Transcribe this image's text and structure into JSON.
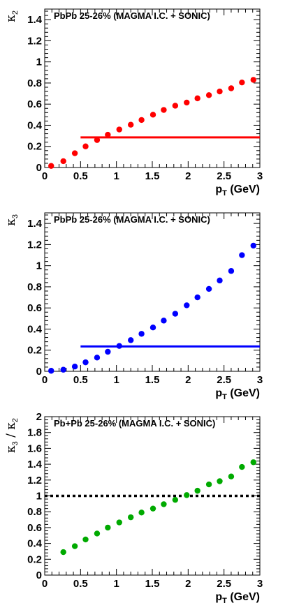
{
  "chart_data": [
    {
      "type": "scatter",
      "title": "PbPb 25-26% (MAGMA I.C. + SONIC)",
      "xlabel": {
        "main": "p",
        "sub": "T",
        "unit": "(GeV)"
      },
      "ylabel": {
        "greek": "κ",
        "sub": "2"
      },
      "xlim": [
        0,
        3
      ],
      "ylim": [
        0,
        1.5
      ],
      "x_ticks": [
        "0",
        "0.5",
        "1",
        "1.5",
        "2",
        "2.5",
        "3"
      ],
      "y_ticks": [
        "0",
        "0.2",
        "0.4",
        "0.6",
        "0.8",
        "1",
        "1.2",
        "1.4"
      ],
      "marker_color": "#ff0000",
      "points": [
        [
          0.09,
          0.015
        ],
        [
          0.26,
          0.06
        ],
        [
          0.42,
          0.135
        ],
        [
          0.57,
          0.2
        ],
        [
          0.73,
          0.26
        ],
        [
          0.88,
          0.31
        ],
        [
          1.04,
          0.36
        ],
        [
          1.2,
          0.405
        ],
        [
          1.35,
          0.45
        ],
        [
          1.51,
          0.5
        ],
        [
          1.66,
          0.545
        ],
        [
          1.82,
          0.585
        ],
        [
          1.98,
          0.615
        ],
        [
          2.13,
          0.655
        ],
        [
          2.29,
          0.685
        ],
        [
          2.44,
          0.72
        ],
        [
          2.6,
          0.75
        ],
        [
          2.75,
          0.805
        ],
        [
          2.91,
          0.83
        ]
      ],
      "hline": {
        "y": 0.285,
        "xmin": 0.5,
        "xmax": 3,
        "color": "#ff0000",
        "style": "solid"
      }
    },
    {
      "type": "scatter",
      "title": "PbPb 25-26% (MAGMA I.C. + SONIC)",
      "xlabel": {
        "main": "p",
        "sub": "T",
        "unit": "(GeV)"
      },
      "ylabel": {
        "greek": "κ",
        "sub": "3"
      },
      "xlim": [
        0,
        3
      ],
      "ylim": [
        0,
        1.5
      ],
      "x_ticks": [
        "0",
        "0.5",
        "1",
        "1.5",
        "2",
        "2.5",
        "3"
      ],
      "y_ticks": [
        "0",
        "0.2",
        "0.4",
        "0.6",
        "0.8",
        "1",
        "1.2",
        "1.4"
      ],
      "marker_color": "#0000ff",
      "points": [
        [
          0.09,
          0.005
        ],
        [
          0.26,
          0.015
        ],
        [
          0.42,
          0.045
        ],
        [
          0.57,
          0.085
        ],
        [
          0.73,
          0.13
        ],
        [
          0.88,
          0.185
        ],
        [
          1.04,
          0.24
        ],
        [
          1.2,
          0.295
        ],
        [
          1.35,
          0.355
        ],
        [
          1.51,
          0.415
        ],
        [
          1.66,
          0.48
        ],
        [
          1.82,
          0.545
        ],
        [
          1.98,
          0.625
        ],
        [
          2.13,
          0.7
        ],
        [
          2.29,
          0.78
        ],
        [
          2.44,
          0.86
        ],
        [
          2.6,
          0.95
        ],
        [
          2.75,
          1.1
        ],
        [
          2.91,
          1.19
        ]
      ],
      "hline": {
        "y": 0.235,
        "xmin": 0.5,
        "xmax": 3,
        "color": "#0000ff",
        "style": "solid"
      }
    },
    {
      "type": "scatter",
      "title": "Pb+Pb 25-26% (MAGMA I.C. + SONIC)",
      "xlabel": {
        "main": "p",
        "sub": "T",
        "unit": "(GeV)"
      },
      "ylabel": {
        "greek": "κ",
        "sub": "3",
        "sep": "/",
        "greek2": "κ",
        "sub2": "2"
      },
      "xlim": [
        0,
        3
      ],
      "ylim": [
        0,
        2
      ],
      "x_ticks": [
        "0",
        "0.5",
        "1",
        "1.5",
        "2",
        "2.5",
        "3"
      ],
      "y_ticks": [
        "0",
        "0.2",
        "0.4",
        "0.6",
        "0.8",
        "1",
        "1.2",
        "1.4",
        "1.6",
        "1.8",
        "2"
      ],
      "marker_color": "#00aa00",
      "points": [
        [
          0.26,
          0.29
        ],
        [
          0.42,
          0.365
        ],
        [
          0.57,
          0.45
        ],
        [
          0.73,
          0.525
        ],
        [
          0.88,
          0.6
        ],
        [
          1.04,
          0.665
        ],
        [
          1.2,
          0.73
        ],
        [
          1.35,
          0.79
        ],
        [
          1.51,
          0.84
        ],
        [
          1.66,
          0.895
        ],
        [
          1.82,
          0.95
        ],
        [
          1.98,
          1.01
        ],
        [
          2.13,
          1.065
        ],
        [
          2.29,
          1.145
        ],
        [
          2.44,
          1.185
        ],
        [
          2.6,
          1.245
        ],
        [
          2.75,
          1.365
        ],
        [
          2.91,
          1.425
        ]
      ],
      "hline": {
        "y": 1.0,
        "xmin": 0,
        "xmax": 3,
        "color": "#000000",
        "style": "dotted"
      }
    }
  ]
}
